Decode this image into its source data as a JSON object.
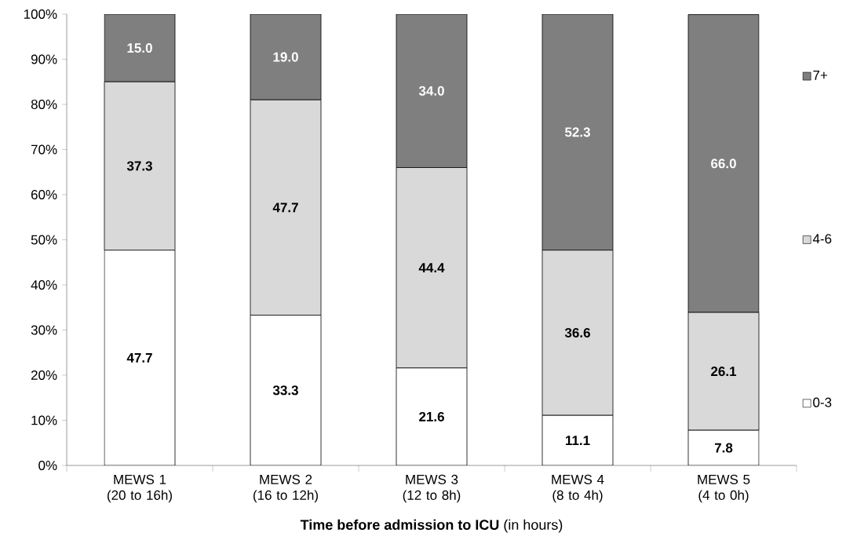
{
  "chart_data": {
    "type": "bar",
    "stacked": true,
    "xlabel": "**Time before admission to ICU** (in hours)",
    "categories": [
      "MEWS 1 (20 to 16h)",
      "MEWS 2 (16 to 12h)",
      "MEWS 3 (12 to 8h)",
      "MEWS 4 (8 to 4h)",
      "MEWS 5 (4 to 0h)"
    ],
    "series": [
      {
        "name": "0-3",
        "color": "#ffffff",
        "values": [
          47.7,
          33.3,
          21.6,
          11.1,
          7.8
        ],
        "value_labels": [
          "47.7",
          "33.3",
          "21.6",
          "11.1",
          "7.8"
        ]
      },
      {
        "name": "4-6",
        "color": "#d9d9d9",
        "values": [
          37.3,
          47.7,
          44.4,
          36.6,
          26.1
        ],
        "value_labels": [
          "37.3",
          "47.7",
          "44.4",
          "36.6",
          "26.1"
        ]
      },
      {
        "name": "7+",
        "color": "#7f7f7f",
        "values": [
          15.0,
          19.0,
          34.0,
          52.3,
          66.0
        ],
        "value_labels": [
          "15.0",
          "19.0",
          "34.0",
          "52.3",
          "66.0"
        ]
      }
    ],
    "ylim": [
      0,
      100
    ],
    "yticks": [
      {
        "value": 0,
        "label": "0%"
      },
      {
        "value": 10,
        "label": "10%"
      },
      {
        "value": 20,
        "label": "20%"
      },
      {
        "value": 30,
        "label": "30%"
      },
      {
        "value": 40,
        "label": "40%"
      },
      {
        "value": 50,
        "label": "50%"
      },
      {
        "value": 60,
        "label": "60%"
      },
      {
        "value": 70,
        "label": "70%"
      },
      {
        "value": 80,
        "label": "80%"
      },
      {
        "value": 90,
        "label": "90%"
      },
      {
        "value": 100,
        "label": "100%"
      }
    ],
    "legend": "right",
    "grid": false
  }
}
